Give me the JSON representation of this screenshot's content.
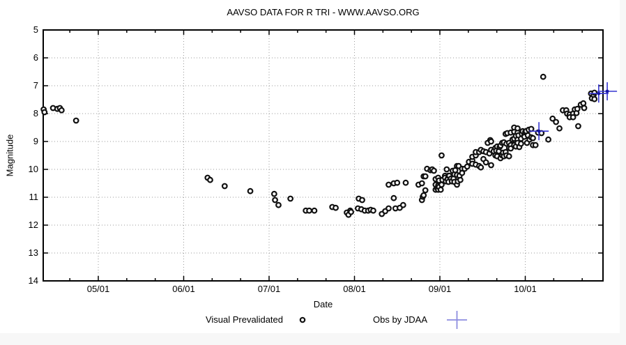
{
  "page": {
    "background": "#ffffff",
    "margin_strip_color": "#f7f7f7"
  },
  "chart_data": {
    "type": "scatter",
    "title": "AAVSO DATA FOR R TRI - WWW.AAVSO.ORG",
    "xlabel": "Date",
    "ylabel": "Magnitude",
    "x_axis": {
      "unit": "decimal_month_mm/dd",
      "lim": [
        4.355,
        10.91
      ],
      "major_ticks": [
        {
          "value": 5,
          "label": "05/01"
        },
        {
          "value": 6,
          "label": "06/01"
        },
        {
          "value": 7,
          "label": "07/01"
        },
        {
          "value": 8,
          "label": "08/01"
        },
        {
          "value": 9,
          "label": "09/01"
        },
        {
          "value": 10,
          "label": "10/01"
        }
      ],
      "minor_tick_step": 0.3333
    },
    "y_axis": {
      "lim": [
        5,
        14
      ],
      "inverted": true,
      "ticks": [
        {
          "value": 5,
          "label": "5"
        },
        {
          "value": 6,
          "label": "6"
        },
        {
          "value": 7,
          "label": "7"
        },
        {
          "value": 8,
          "label": "8"
        },
        {
          "value": 9,
          "label": "9"
        },
        {
          "value": 10,
          "label": "10"
        },
        {
          "value": 11,
          "label": "11"
        },
        {
          "value": 12,
          "label": "12"
        },
        {
          "value": 13,
          "label": "13"
        },
        {
          "value": 14,
          "label": "14"
        }
      ]
    },
    "grid": {
      "show": true,
      "color": "#999999",
      "style": "dotted"
    },
    "legend_position": "below-chart",
    "legend": [
      {
        "label": "Visual Prevalidated",
        "marker": "open-circle",
        "color": "#111111",
        "sample_color": "#111111"
      },
      {
        "label": "Obs by JDAA",
        "marker": "plus",
        "color": "#3535cf",
        "sample_color": "#8d8de0"
      }
    ],
    "series": [
      {
        "name": "Visual Prevalidated",
        "marker": "open-circle",
        "color": "#111111",
        "points": [
          [
            4.36,
            7.85
          ],
          [
            4.37,
            7.95
          ],
          [
            4.47,
            7.8
          ],
          [
            4.52,
            7.83
          ],
          [
            4.55,
            7.8
          ],
          [
            4.57,
            7.88
          ],
          [
            4.74,
            8.25
          ],
          [
            6.28,
            10.3
          ],
          [
            6.31,
            10.38
          ],
          [
            6.48,
            10.6
          ],
          [
            6.78,
            10.78
          ],
          [
            7.06,
            10.88
          ],
          [
            7.07,
            11.1
          ],
          [
            7.11,
            11.28
          ],
          [
            7.25,
            11.05
          ],
          [
            7.43,
            11.48
          ],
          [
            7.47,
            11.48
          ],
          [
            7.53,
            11.48
          ],
          [
            7.74,
            11.35
          ],
          [
            7.78,
            11.38
          ],
          [
            7.91,
            11.55
          ],
          [
            7.93,
            11.63
          ],
          [
            7.95,
            11.48
          ],
          [
            7.96,
            11.53
          ],
          [
            8.04,
            11.4
          ],
          [
            8.05,
            11.05
          ],
          [
            8.08,
            11.43
          ],
          [
            8.09,
            11.1
          ],
          [
            8.12,
            11.48
          ],
          [
            8.16,
            11.48
          ],
          [
            8.19,
            11.45
          ],
          [
            8.22,
            11.48
          ],
          [
            8.32,
            11.6
          ],
          [
            8.36,
            11.5
          ],
          [
            8.4,
            11.4
          ],
          [
            8.4,
            10.55
          ],
          [
            8.46,
            11.03
          ],
          [
            8.46,
            10.5
          ],
          [
            8.48,
            11.4
          ],
          [
            8.5,
            10.48
          ],
          [
            8.53,
            11.38
          ],
          [
            8.57,
            11.28
          ],
          [
            8.6,
            10.48
          ],
          [
            8.75,
            10.55
          ],
          [
            8.79,
            10.5
          ],
          [
            8.79,
            11.1
          ],
          [
            8.8,
            10.98
          ],
          [
            8.81,
            10.93
          ],
          [
            8.81,
            10.25
          ],
          [
            8.83,
            10.75
          ],
          [
            8.83,
            10.25
          ],
          [
            8.85,
            9.98
          ],
          [
            8.89,
            10.03
          ],
          [
            8.91,
            10.0
          ],
          [
            8.93,
            10.05
          ],
          [
            8.95,
            10.35
          ],
          [
            8.95,
            10.55
          ],
          [
            8.95,
            10.73
          ],
          [
            8.97,
            10.68
          ],
          [
            8.98,
            10.3
          ],
          [
            8.98,
            10.73
          ],
          [
            8.98,
            10.58
          ],
          [
            8.99,
            10.4
          ],
          [
            8.99,
            10.63
          ],
          [
            9.01,
            10.73
          ],
          [
            9.02,
            9.5
          ],
          [
            9.02,
            10.55
          ],
          [
            9.03,
            10.38
          ],
          [
            9.06,
            10.23
          ],
          [
            9.06,
            10.3
          ],
          [
            9.07,
            10.43
          ],
          [
            9.08,
            10.0
          ],
          [
            9.09,
            10.35
          ],
          [
            9.1,
            10.23
          ],
          [
            9.1,
            10.45
          ],
          [
            9.11,
            10.23
          ],
          [
            9.13,
            10.33
          ],
          [
            9.14,
            10.43
          ],
          [
            9.15,
            10.05
          ],
          [
            9.16,
            10.33
          ],
          [
            9.17,
            10.18
          ],
          [
            9.17,
            10.45
          ],
          [
            9.18,
            10.03
          ],
          [
            9.2,
            9.88
          ],
          [
            9.2,
            10.2
          ],
          [
            9.2,
            10.55
          ],
          [
            9.21,
            10.43
          ],
          [
            9.22,
            9.88
          ],
          [
            9.23,
            10.23
          ],
          [
            9.24,
            10.38
          ],
          [
            9.26,
            9.98
          ],
          [
            9.26,
            10.13
          ],
          [
            9.29,
            9.98
          ],
          [
            9.32,
            9.9
          ],
          [
            9.34,
            9.73
          ],
          [
            9.38,
            9.68
          ],
          [
            9.38,
            9.55
          ],
          [
            9.38,
            9.8
          ],
          [
            9.42,
            9.5
          ],
          [
            9.42,
            9.83
          ],
          [
            9.42,
            9.38
          ],
          [
            9.46,
            9.38
          ],
          [
            9.46,
            9.88
          ],
          [
            9.48,
            9.3
          ],
          [
            9.48,
            9.93
          ],
          [
            9.51,
            9.35
          ],
          [
            9.51,
            9.63
          ],
          [
            9.54,
            9.38
          ],
          [
            9.54,
            9.75
          ],
          [
            9.56,
            9.05
          ],
          [
            9.58,
            9.43
          ],
          [
            9.59,
            8.95
          ],
          [
            9.6,
            9.0
          ],
          [
            9.6,
            9.3
          ],
          [
            9.6,
            9.85
          ],
          [
            9.63,
            9.35
          ],
          [
            9.65,
            9.23
          ],
          [
            9.65,
            9.5
          ],
          [
            9.66,
            9.33
          ],
          [
            9.67,
            9.18
          ],
          [
            9.67,
            9.53
          ],
          [
            9.69,
            9.35
          ],
          [
            9.7,
            9.2
          ],
          [
            9.71,
            9.15
          ],
          [
            9.71,
            9.6
          ],
          [
            9.73,
            9.05
          ],
          [
            9.73,
            9.5
          ],
          [
            9.74,
            9.4
          ],
          [
            9.75,
            9.03
          ],
          [
            9.75,
            9.53
          ],
          [
            9.77,
            8.73
          ],
          [
            9.77,
            9.38
          ],
          [
            9.78,
            9.08
          ],
          [
            9.78,
            9.5
          ],
          [
            9.79,
            8.7
          ],
          [
            9.81,
            9.05
          ],
          [
            9.81,
            9.23
          ],
          [
            9.81,
            9.53
          ],
          [
            9.83,
            8.68
          ],
          [
            9.83,
            9.13
          ],
          [
            9.83,
            9.25
          ],
          [
            9.85,
            8.93
          ],
          [
            9.87,
            8.65
          ],
          [
            9.87,
            9.13
          ],
          [
            9.87,
            8.5
          ],
          [
            9.87,
            8.9
          ],
          [
            9.89,
            8.8
          ],
          [
            9.89,
            9.18
          ],
          [
            9.91,
            8.68
          ],
          [
            9.91,
            8.53
          ],
          [
            9.91,
            8.93
          ],
          [
            9.91,
            9.05
          ],
          [
            9.92,
            8.78
          ],
          [
            9.93,
            9.2
          ],
          [
            9.95,
            8.9
          ],
          [
            9.95,
            9.08
          ],
          [
            9.96,
            8.73
          ],
          [
            9.97,
            8.63
          ],
          [
            9.99,
            8.75
          ],
          [
            9.99,
            8.83
          ],
          [
            10.0,
            8.65
          ],
          [
            10.01,
            8.63
          ],
          [
            10.02,
            9.05
          ],
          [
            10.03,
            8.78
          ],
          [
            10.04,
            8.58
          ],
          [
            10.05,
            8.93
          ],
          [
            10.07,
            8.55
          ],
          [
            10.07,
            8.85
          ],
          [
            10.09,
            8.88
          ],
          [
            10.09,
            9.13
          ],
          [
            10.12,
            9.13
          ],
          [
            10.15,
            8.68
          ],
          [
            10.19,
            8.7
          ],
          [
            10.21,
            6.68
          ],
          [
            10.27,
            8.93
          ],
          [
            10.32,
            8.18
          ],
          [
            10.36,
            8.3
          ],
          [
            10.4,
            8.53
          ],
          [
            10.44,
            7.88
          ],
          [
            10.48,
            7.88
          ],
          [
            10.49,
            8.0
          ],
          [
            10.52,
            8.03
          ],
          [
            10.52,
            8.13
          ],
          [
            10.56,
            8.0
          ],
          [
            10.56,
            8.13
          ],
          [
            10.58,
            7.85
          ],
          [
            10.6,
            7.98
          ],
          [
            10.61,
            7.83
          ],
          [
            10.62,
            8.45
          ],
          [
            10.65,
            7.68
          ],
          [
            10.68,
            7.63
          ],
          [
            10.69,
            7.8
          ],
          [
            10.77,
            7.28
          ],
          [
            10.78,
            7.45
          ],
          [
            10.8,
            7.33
          ],
          [
            10.81,
            7.25
          ],
          [
            10.81,
            7.48
          ]
        ]
      },
      {
        "name": "Obs by JDAA",
        "marker": "plus",
        "color": "#3535cf",
        "points": [
          [
            10.16,
            8.63
          ],
          [
            10.86,
            7.28
          ],
          [
            10.96,
            7.2
          ]
        ]
      }
    ]
  }
}
